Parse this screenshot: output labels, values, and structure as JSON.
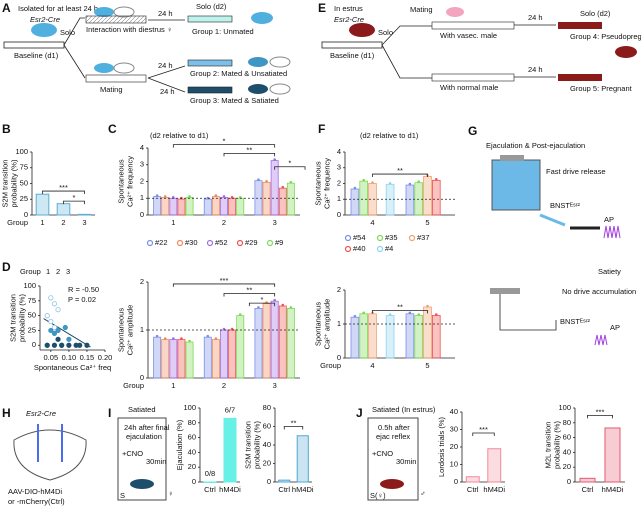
{
  "panels": {
    "A": {
      "letter": "A",
      "isolated": "Isolated for at least 24 h",
      "mouse": "Esr2-Cre",
      "solo": "Solo",
      "baseline": "Baseline (d1)",
      "interaction": "Interaction with diestrus ♀",
      "mating": "Mating",
      "t1": "24 h",
      "t2": "24 h",
      "t3": "24 h",
      "solo_d2": "Solo (d2)",
      "g1": "Group 1: Unmated",
      "g2": "Group 2: Mated & Unsatiated",
      "g3": "Group 3: Mated & Satiated"
    },
    "E": {
      "letter": "E",
      "estrus": "In estrus",
      "mouse": "Esr2-Cre",
      "solo": "Solo",
      "baseline": "Baseline (d1)",
      "mating": "Mating",
      "vasec": "With vasec. male",
      "normal": "With normal male",
      "t1": "24 h",
      "t2": "24 h",
      "solo_d2": "Solo (d2)",
      "g4": "Group 4: Pseudopregnant",
      "g5": "Group 5: Pregnant"
    },
    "B": {
      "letter": "B",
      "ylabel": [
        "S2M transition",
        "probability (%)"
      ],
      "xlabel": "Group",
      "categories": [
        "1",
        "2",
        "3"
      ],
      "values": [
        33,
        18,
        1
      ],
      "color": "#5aaed6",
      "ylim": [
        0,
        100
      ],
      "yticks": [
        0,
        25,
        50,
        75,
        100
      ],
      "significance": [
        "***",
        "*"
      ]
    },
    "C": {
      "letter": "C",
      "note": "(d2 relative to d1)",
      "frequency": {
        "ylabel": [
          "Spontaneous",
          "Ca²⁺ frequency"
        ],
        "categories": [
          "1",
          "2",
          "3"
        ],
        "ylim": [
          0,
          4
        ],
        "yticks": [
          0,
          1,
          2,
          3,
          4
        ],
        "reference": 1,
        "series": [
          {
            "name": "#22",
            "color": "#7b8fe8",
            "values": [
              1.1,
              0.95,
              2.05
            ]
          },
          {
            "name": "#30",
            "color": "#f08a5d",
            "values": [
              1.05,
              1.1,
              1.95
            ]
          },
          {
            "name": "#52",
            "color": "#a26ee8",
            "values": [
              1.0,
              1.05,
              3.25
            ]
          },
          {
            "name": "#29",
            "color": "#ef5350",
            "values": [
              0.95,
              1.0,
              1.6
            ]
          },
          {
            "name": "#9",
            "color": "#7ed957",
            "values": [
              1.05,
              1.0,
              1.9
            ]
          }
        ],
        "significance": [
          "*",
          "**",
          "*"
        ]
      },
      "amplitude": {
        "ylabel": [
          "Spontaneous",
          "Ca²⁺ amplitude"
        ],
        "xlabel": "Group",
        "categories": [
          "1",
          "2",
          "3"
        ],
        "ylim": [
          0,
          2
        ],
        "yticks": [
          0,
          1,
          2
        ],
        "reference": 1,
        "series": [
          {
            "name": "#22",
            "color": "#7b8fe8",
            "values": [
              0.85,
              0.85,
              1.45
            ]
          },
          {
            "name": "#30",
            "color": "#f08a5d",
            "values": [
              0.8,
              0.8,
              1.55
            ]
          },
          {
            "name": "#52",
            "color": "#a26ee8",
            "values": [
              0.8,
              1.0,
              1.6
            ]
          },
          {
            "name": "#29",
            "color": "#ef5350",
            "values": [
              0.8,
              1.0,
              1.5
            ]
          },
          {
            "name": "#9",
            "color": "#7ed957",
            "values": [
              0.75,
              1.3,
              1.45
            ]
          }
        ],
        "significance": [
          "***",
          "**",
          "*"
        ]
      }
    },
    "D": {
      "letter": "D",
      "legend_title": "Group",
      "groups": [
        "1",
        "2",
        "3"
      ],
      "group_colors": [
        "#8cc3e0",
        "#3f95c4",
        "#1d4e6b"
      ],
      "r": "R = -0.50",
      "p": "P = 0.02",
      "ylabel": [
        "S2M transition",
        "probability (%)"
      ],
      "xlabel": "Spontaneous Ca²⁺ freq",
      "xlim": [
        0.02,
        0.2
      ],
      "xticks": [
        0.05,
        {
          "value": 0.1,
          "label": "0.10"
        },
        0.15,
        {
          "value": 0.2,
          "label": "0.20"
        }
      ],
      "ylim": [
        -8,
        100
      ],
      "yticks": [
        0,
        25,
        50,
        75,
        100
      ],
      "x": [
        0.05,
        0.06,
        0.04,
        0.05,
        0.07,
        0.06,
        0.04,
        0.05,
        0.06,
        0.07,
        0.09,
        0.1,
        0.08,
        0.04,
        0.06,
        0.08,
        0.1,
        0.12,
        0.13,
        0.15,
        0.07
      ],
      "y": [
        80,
        70,
        50,
        40,
        60,
        30,
        0,
        25,
        20,
        25,
        30,
        10,
        0,
        0,
        0,
        0,
        0,
        0,
        0,
        0,
        10
      ],
      "group": [
        1,
        1,
        1,
        1,
        1,
        1,
        1,
        2,
        2,
        2,
        2,
        2,
        2,
        3,
        3,
        3,
        3,
        3,
        3,
        3,
        3
      ]
    },
    "F": {
      "letter": "F",
      "note": "(d2 relative to d1)",
      "frequency": {
        "ylabel": [
          "Spontaneous",
          "Ca²⁺ frequency"
        ],
        "categories": [
          "4",
          "5"
        ],
        "ylim": [
          0,
          4
        ],
        "yticks": [
          0,
          1,
          2,
          3,
          4
        ],
        "reference": 1,
        "series": [
          {
            "name": "#54",
            "color": "#7b8fe8",
            "values": [
              1.65,
              1.9
            ]
          },
          {
            "name": "#35",
            "color": "#7ed957",
            "values": [
              2.15,
              2.05
            ]
          },
          {
            "name": "#37",
            "color": "#f0a070",
            "values": [
              2.0,
              2.45
            ]
          },
          {
            "name": "#40",
            "color": "#ef5350",
            "values": [
              null,
              2.2
            ]
          },
          {
            "name": "#4",
            "color": "#8fd3f0",
            "values": [
              1.95,
              null
            ]
          }
        ],
        "significance": [
          "**"
        ]
      },
      "amplitude": {
        "ylabel": [
          "Spontaneous",
          "Ca²⁺ amplitude"
        ],
        "xlabel": "Group",
        "categories": [
          "4",
          "5"
        ],
        "ylim": [
          0,
          2
        ],
        "yticks": [
          0,
          1,
          2
        ],
        "reference": 1,
        "series": [
          {
            "name": "#54",
            "color": "#7b8fe8",
            "values": [
              1.2,
              1.3
            ]
          },
          {
            "name": "#35",
            "color": "#7ed957",
            "values": [
              1.3,
              1.25
            ]
          },
          {
            "name": "#37",
            "color": "#f0a070",
            "values": [
              1.3,
              1.5
            ]
          },
          {
            "name": "#40",
            "color": "#ef5350",
            "values": [
              null,
              1.25
            ]
          },
          {
            "name": "#4",
            "color": "#8fd3f0",
            "values": [
              1.25,
              null
            ]
          }
        ],
        "significance": [
          "**"
        ]
      }
    },
    "G": {
      "letter": "G",
      "title1": "Ejaculation & Post-ejaculation",
      "release": "Fast drive release",
      "bnst1": "BNSTᴱˢʳ²",
      "ap1": "AP",
      "title2": "Satiety",
      "noaccum": "No drive accumulation",
      "bnst2": "BNSTᴱˢʳ²",
      "ap2": "AP"
    },
    "H": {
      "letter": "H",
      "mouse": "Esr2-Cre",
      "virus": "AAV-DIO-hM4Di",
      "virus2": "or -mCherry(Ctrl)"
    },
    "I": {
      "letter": "I",
      "state": "Satiated",
      "timing": "24h after final",
      "timing2": "ejaculation",
      "cno": "+CNO",
      "wait": "30min",
      "s": "S",
      "female": "♀",
      "ejaculation": {
        "ylabel": "Ejaculation (%)",
        "categories": [
          "Ctrl",
          "hM4Di"
        ],
        "values": [
          0,
          86
        ],
        "value_labels": [
          "0/8",
          "6/7"
        ],
        "color": "#66f0e6",
        "ylim": [
          0,
          100
        ],
        "yticks": [
          0,
          20,
          40,
          60,
          80,
          100
        ]
      },
      "s2m": {
        "ylabel": [
          "S2M transition",
          "probability (%)"
        ],
        "categories": [
          "Ctrl",
          "hM4Di"
        ],
        "values": [
          2,
          50
        ],
        "color": "#4fa8d0",
        "ylim": [
          0,
          80
        ],
        "yticks": [
          0,
          20,
          40,
          60,
          80
        ],
        "significance": [
          "**"
        ]
      }
    },
    "J": {
      "letter": "J",
      "state": "Satiated (In estrus)",
      "timing": "0.5h after",
      "timing2": "ejac reflex",
      "cno": "+CNO",
      "wait": "30min",
      "s": "S(♀)",
      "male": "♂",
      "lordosis": {
        "ylabel": "Lordosis trials (%)",
        "categories": [
          "Ctrl",
          "hM4Di"
        ],
        "values": [
          3,
          19
        ],
        "color": "#f08a9a",
        "ylim": [
          0,
          40
        ],
        "yticks": [
          0,
          10,
          20,
          30,
          40
        ],
        "significance": [
          "***"
        ]
      },
      "m2l": {
        "ylabel": [
          "M2L transition",
          "probability (%)"
        ],
        "categories": [
          "Ctrl",
          "hM4Di"
        ],
        "values": [
          5,
          73
        ],
        "color": "#e35a6c",
        "ylim": [
          0,
          100
        ],
        "yticks": [
          0,
          20,
          40,
          60,
          80,
          100
        ],
        "significance": [
          "***"
        ]
      }
    }
  }
}
